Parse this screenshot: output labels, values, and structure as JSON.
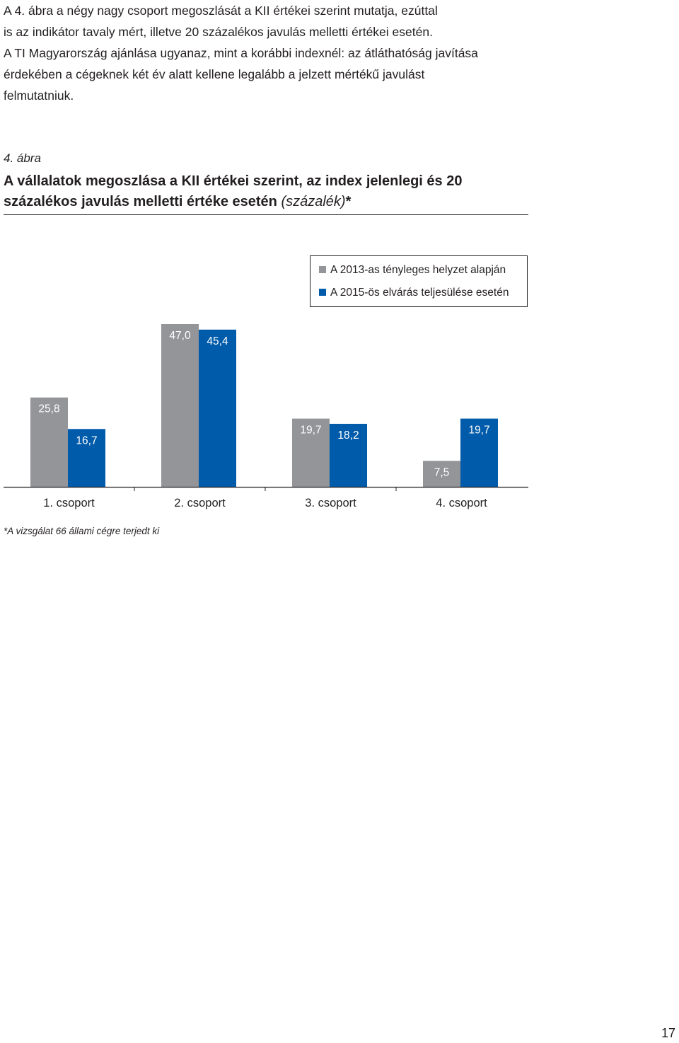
{
  "intro": {
    "lines": [
      "A 4. ábra a négy nagy csoport megoszlását a KII értékei szerint mutatja, ezúttal",
      "is az indikátor tavaly mért, illetve 20 százalékos javulás melletti értékei esetén.",
      "A TI Magyarország ajánlása ugyanaz, mint a korábbi indexnél: az átláthatóság javítása",
      "érdekében a cégeknek két év alatt kellene legalább a jelzett mértékű javulást",
      "felmutatniuk."
    ]
  },
  "figure": {
    "label": "4. ábra",
    "title_bold": "A vállalatok megoszlása a KII értékei szerint, az index jelenlegi és 20 százalékos javulás melletti értéke esetén",
    "title_unit": "(százalék)",
    "title_suffix": "*",
    "footnote": "*A vizsgálat 66 állami cégre terjedt ki"
  },
  "chart_data": {
    "type": "bar",
    "categories": [
      "1. csoport",
      "2. csoport",
      "3. csoport",
      "4. csoport"
    ],
    "series": [
      {
        "name": "A 2013-as tényleges helyzet alapján",
        "color": "#939598",
        "values": [
          25.8,
          47.0,
          19.7,
          7.5
        ]
      },
      {
        "name": "A 2015-ös elvárás teljesülése esetén",
        "color": "#005baa",
        "values": [
          16.7,
          45.4,
          18.2,
          19.7
        ]
      }
    ],
    "data_labels": [
      [
        "25,8",
        "47,0",
        "19,7",
        "7,5"
      ],
      [
        "16,7",
        "45,4",
        "18,2",
        "19,7"
      ]
    ],
    "ylim": [
      0,
      47.0
    ],
    "legend_position": "top-right",
    "grid": false
  },
  "page_number": "17"
}
